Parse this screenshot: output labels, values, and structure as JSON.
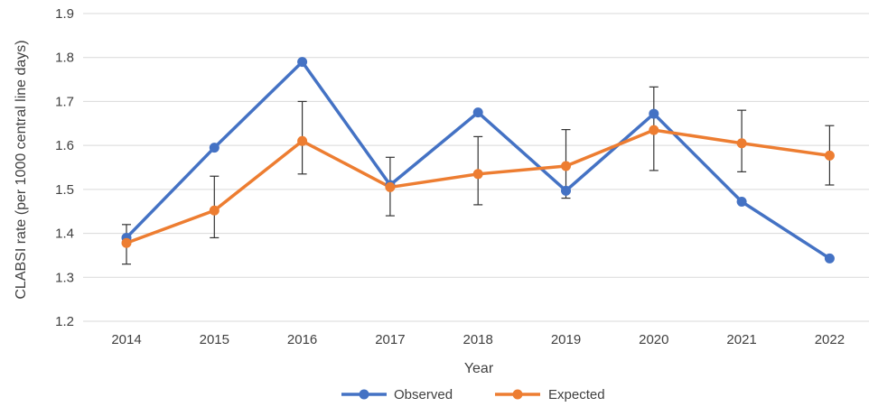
{
  "chart_data": {
    "type": "line",
    "title": "",
    "xlabel": "Year",
    "ylabel": "CLABSI rate (per 1000 central line days)",
    "categories": [
      "2014",
      "2015",
      "2016",
      "2017",
      "2018",
      "2019",
      "2020",
      "2021",
      "2022"
    ],
    "ylim": [
      1.2,
      1.9
    ],
    "yticks": [
      1.2,
      1.3,
      1.4,
      1.5,
      1.6,
      1.7,
      1.8,
      1.9
    ],
    "ytick_labels": [
      "1.2",
      "1.3",
      "1.4",
      "1.5",
      "1.6",
      "1.7",
      "1.8",
      "1.9"
    ],
    "grid": "horizontal",
    "legend_position": "bottom",
    "series": [
      {
        "name": "Observed",
        "color": "#4472C4",
        "values": [
          1.39,
          1.595,
          1.79,
          1.51,
          1.675,
          1.497,
          1.672,
          1.472,
          1.343
        ]
      },
      {
        "name": "Expected",
        "color": "#ED7D31",
        "values": [
          1.378,
          1.452,
          1.61,
          1.505,
          1.535,
          1.553,
          1.635,
          1.605,
          1.577
        ],
        "error_bars": [
          [
            1.33,
            1.42
          ],
          [
            1.39,
            1.53
          ],
          [
            1.535,
            1.7
          ],
          [
            1.44,
            1.573
          ],
          [
            1.465,
            1.62
          ],
          [
            1.48,
            1.636
          ],
          [
            1.543,
            1.733
          ],
          [
            1.54,
            1.68
          ],
          [
            1.51,
            1.645
          ]
        ]
      }
    ]
  }
}
